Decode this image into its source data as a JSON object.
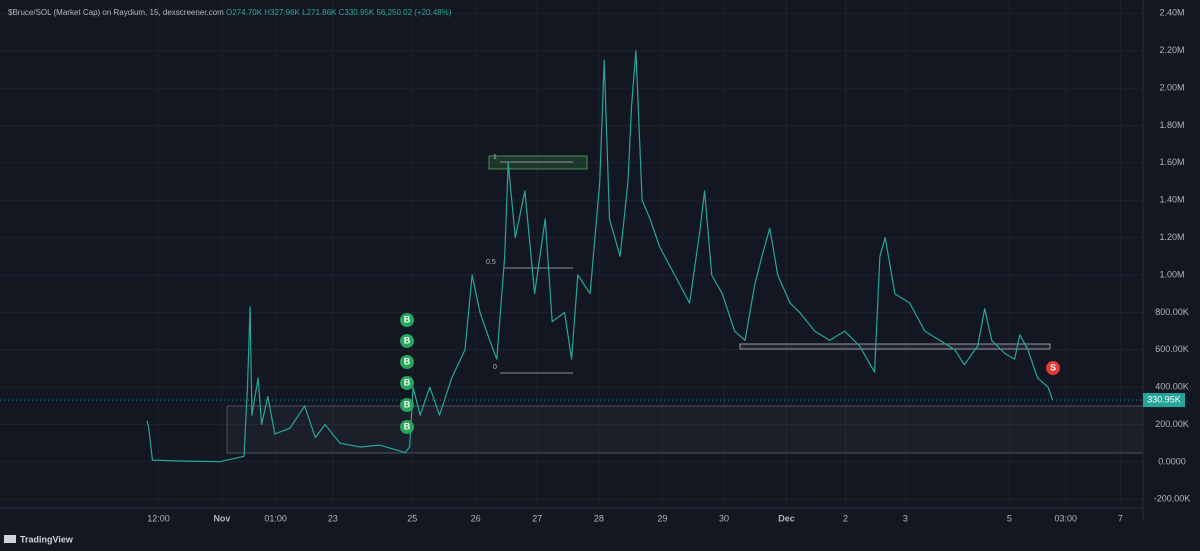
{
  "chart_data": {
    "type": "line",
    "header": {
      "symbol": "$Bruce/SOL (Market Cap) on Raydium, 15, dexscreener.com",
      "open": "O274.70K",
      "high": "H327.96K",
      "low": "L271.86K",
      "close": "C330.95K",
      "change": "56,250.02 (+20.48%)"
    },
    "series": [
      {
        "name": "$Bruce/SOL",
        "color": "#26a69a",
        "x": [
          16.7,
          16.9,
          17.3,
          20.4,
          25,
          27.7,
          28.1,
          28.4,
          28.6,
          29.3,
          29.7,
          30.4,
          31.2,
          32.9,
          34.6,
          35.8,
          36.9,
          38.6,
          40.9,
          43.1,
          46,
          46.5,
          46.9,
          47.7,
          48.8,
          49.9,
          51.3,
          52.8,
          53.6,
          54.5,
          55.6,
          56.4,
          57.3,
          57.7,
          58.5,
          59.6,
          60.7,
          61.9,
          62.7,
          64.1,
          64.9,
          65.6,
          67,
          68.1,
          68.6,
          69.2,
          70.4,
          71.3,
          71.7,
          72.2,
          72.9,
          73.8,
          74.9,
          76.6,
          78.3,
          79.5,
          80,
          80.8,
          82,
          83.4,
          84.6,
          85.7,
          86.5,
          87.4,
          88.3,
          89.7,
          90.8,
          92.5,
          94.2,
          95.9,
          97.6,
          99.3,
          99.9,
          100.5,
          101.6,
          103.3,
          105,
          106.7,
          108.4,
          109.5,
          111,
          111.8,
          112.6,
          114.1,
          115.2,
          115.8,
          116.7,
          117.8,
          119,
          119.5
        ],
        "values": [
          220000,
          180000,
          10000,
          5000,
          2000,
          30000,
          400000,
          830000,
          250000,
          450000,
          200000,
          350000,
          150000,
          180000,
          300000,
          130000,
          200000,
          100000,
          80000,
          90000,
          50000,
          80000,
          400000,
          250000,
          400000,
          250000,
          450000,
          600000,
          1000000,
          800000,
          650000,
          550000,
          1100000,
          1600000,
          1200000,
          1450000,
          900000,
          1300000,
          750000,
          800000,
          550000,
          1000000,
          900000,
          1500000,
          2150000,
          1300000,
          1100000,
          1500000,
          1900000,
          2200000,
          1400000,
          1300000,
          1150000,
          1000000,
          850000,
          1250000,
          1450000,
          1000000,
          900000,
          700000,
          650000,
          950000,
          1100000,
          1250000,
          1000000,
          850000,
          800000,
          700000,
          650000,
          700000,
          620000,
          480000,
          1100000,
          1200000,
          900000,
          850000,
          700000,
          650000,
          600000,
          520000,
          620000,
          820000,
          650000,
          580000,
          550000,
          680000,
          600000,
          450000,
          400000,
          330950
        ]
      }
    ],
    "last_value_label": "330.95K",
    "buy_label": "B",
    "sell_label": "S",
    "fib_labels": [
      "1",
      "0.5",
      "0"
    ],
    "xlim": [
      0,
      130
    ],
    "xticks": [
      {
        "value": 18,
        "label": "12:00"
      },
      {
        "value": 25.2,
        "label": "Nov"
      },
      {
        "value": 31.3,
        "label": "01:00"
      },
      {
        "value": 37.8,
        "label": "23"
      },
      {
        "value": 46.8,
        "label": "25"
      },
      {
        "value": 54,
        "label": "26"
      },
      {
        "value": 61,
        "label": "27"
      },
      {
        "value": 68,
        "label": "28"
      },
      {
        "value": 75.2,
        "label": "29"
      },
      {
        "value": 82.2,
        "label": "30"
      },
      {
        "value": 89.3,
        "label": "Dec"
      },
      {
        "value": 96,
        "label": "2"
      },
      {
        "value": 102.8,
        "label": "3"
      },
      {
        "value": 114.6,
        "label": "5"
      },
      {
        "value": 121,
        "label": "03:00"
      },
      {
        "value": 127.2,
        "label": "7"
      }
    ],
    "ylim": [
      -300000,
      2450000
    ],
    "yticks": [
      {
        "value": -200000,
        "label": "-200.00K"
      },
      {
        "value": 0,
        "label": "0.0000"
      },
      {
        "value": 200000,
        "label": "200.00K"
      },
      {
        "value": 400000,
        "label": "400.00K"
      },
      {
        "value": 600000,
        "label": "600.00K"
      },
      {
        "value": 800000,
        "label": "800.00K"
      },
      {
        "value": 1000000,
        "label": "1.00M"
      },
      {
        "value": 1200000,
        "label": "1.20M"
      },
      {
        "value": 1400000,
        "label": "1.40M"
      },
      {
        "value": 1600000,
        "label": "1.60M"
      },
      {
        "value": 1800000,
        "label": "1.80M"
      },
      {
        "value": 2000000,
        "label": "2.00M"
      },
      {
        "value": 2200000,
        "label": "2.20M"
      },
      {
        "value": 2400000,
        "label": "2.40M"
      }
    ],
    "grid": true,
    "footer": "TradingView"
  }
}
